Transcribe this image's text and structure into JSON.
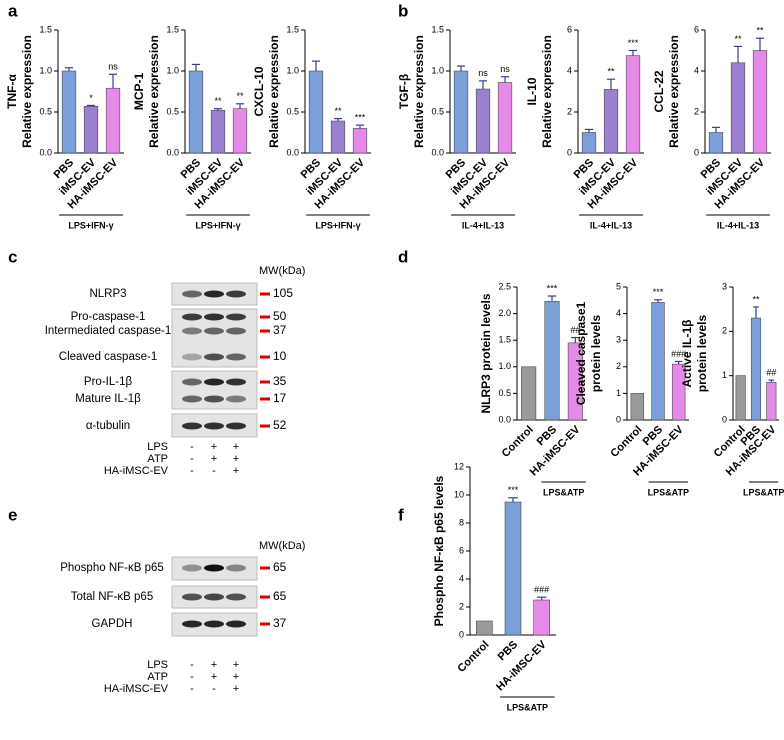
{
  "panel_labels": [
    "a",
    "b",
    "c",
    "d",
    "e",
    "f"
  ],
  "chart_data": [
    {
      "type": "bar",
      "ylabel": [
        "TNF-α",
        "Relative expression"
      ],
      "categories": [
        "PBS",
        "iMSC-EV",
        "HA-iMSC-EV"
      ],
      "colors": [
        "#7b9fd8",
        "#9b80d2",
        "#e68ae9"
      ],
      "values": [
        1.0,
        0.57,
        0.79
      ],
      "errors": [
        0.04,
        0.01,
        0.17
      ],
      "significance": [
        null,
        "*",
        "ns"
      ],
      "ylim": [
        0,
        1.5
      ],
      "yticks": [
        {
          "value": 0,
          "label": "0.0"
        },
        0.5,
        {
          "value": 1,
          "label": "1.0"
        },
        1.5
      ],
      "group": {
        "label": "LPS+IFN-γ",
        "categories": [
          "PBS",
          "iMSC-EV",
          "HA-iMSC-EV"
        ]
      }
    },
    {
      "type": "bar",
      "ylabel": [
        "MCP-1",
        "Relative expression"
      ],
      "categories": [
        "PBS",
        "iMSC-EV",
        "HA-iMSC-EV"
      ],
      "colors": [
        "#7b9fd8",
        "#9b80d2",
        "#e68ae9"
      ],
      "values": [
        1.0,
        0.52,
        0.54
      ],
      "errors": [
        0.08,
        0.02,
        0.06
      ],
      "significance": [
        null,
        "**",
        "**"
      ],
      "ylim": [
        0,
        1.5
      ],
      "yticks": [
        {
          "value": 0,
          "label": "0.0"
        },
        0.5,
        {
          "value": 1,
          "label": "1.0"
        },
        1.5
      ],
      "group": {
        "label": "LPS+IFN-γ",
        "categories": [
          "PBS",
          "iMSC-EV",
          "HA-iMSC-EV"
        ]
      }
    },
    {
      "type": "bar",
      "ylabel": [
        "CXCL-10",
        "Relative expression"
      ],
      "categories": [
        "PBS",
        "iMSC-EV",
        "HA-iMSC-EV"
      ],
      "colors": [
        "#7b9fd8",
        "#9b80d2",
        "#e68ae9"
      ],
      "values": [
        1.0,
        0.39,
        0.3
      ],
      "errors": [
        0.12,
        0.03,
        0.04
      ],
      "significance": [
        null,
        "**",
        "***"
      ],
      "ylim": [
        0,
        1.5
      ],
      "yticks": [
        {
          "value": 0,
          "label": "0.0"
        },
        0.5,
        {
          "value": 1,
          "label": "1.0"
        },
        1.5
      ],
      "group": {
        "label": "LPS+IFN-γ",
        "categories": [
          "PBS",
          "iMSC-EV",
          "HA-iMSC-EV"
        ]
      }
    },
    {
      "type": "bar",
      "ylabel": [
        "TGF-β",
        "Relative expression"
      ],
      "categories": [
        "PBS",
        "iMSC-EV",
        "HA-iMSC-EV"
      ],
      "colors": [
        "#7b9fd8",
        "#9b80d2",
        "#e68ae9"
      ],
      "values": [
        1.0,
        0.78,
        0.86
      ],
      "errors": [
        0.06,
        0.1,
        0.07
      ],
      "significance": [
        null,
        "ns",
        "ns"
      ],
      "ylim": [
        0,
        1.5
      ],
      "yticks": [
        {
          "value": 0,
          "label": "0.0"
        },
        0.5,
        {
          "value": 1,
          "label": "1.0"
        },
        1.5
      ],
      "group": {
        "label": "IL-4+IL-13",
        "categories": [
          "PBS",
          "iMSC-EV",
          "HA-iMSC-EV"
        ]
      }
    },
    {
      "type": "bar",
      "ylabel": [
        "IL-10",
        "Relative expression"
      ],
      "categories": [
        "PBS",
        "iMSC-EV",
        "HA-iMSC-EV"
      ],
      "colors": [
        "#7b9fd8",
        "#9b80d2",
        "#e68ae9"
      ],
      "values": [
        1.0,
        3.1,
        4.75
      ],
      "errors": [
        0.15,
        0.5,
        0.25
      ],
      "significance": [
        null,
        "**",
        "***"
      ],
      "ylim": [
        0,
        6
      ],
      "yticks": [
        0,
        2,
        4,
        6
      ],
      "group": {
        "label": "IL-4+IL-13",
        "categories": [
          "PBS",
          "iMSC-EV",
          "HA-iMSC-EV"
        ]
      }
    },
    {
      "type": "bar",
      "ylabel": [
        "CCL-22",
        "Relative expression"
      ],
      "categories": [
        "PBS",
        "iMSC-EV",
        "HA-iMSC-EV"
      ],
      "colors": [
        "#7b9fd8",
        "#9b80d2",
        "#e68ae9"
      ],
      "values": [
        1.0,
        4.4,
        5.0
      ],
      "errors": [
        0.25,
        0.8,
        0.6
      ],
      "significance": [
        null,
        "**",
        "**"
      ],
      "ylim": [
        0,
        6
      ],
      "yticks": [
        0,
        2,
        4,
        6
      ],
      "group": {
        "label": "IL-4+IL-13",
        "categories": [
          "PBS",
          "iMSC-EV",
          "HA-iMSC-EV"
        ]
      }
    },
    {
      "type": "bar",
      "ylabel": [
        "NLRP3 protein levels"
      ],
      "categories": [
        "Control",
        "PBS",
        "HA-iMSC-EV"
      ],
      "colors": [
        "#9a9a9a",
        "#7b9fd8",
        "#e68ae9"
      ],
      "values": [
        1.0,
        2.23,
        1.45
      ],
      "errors": [
        0,
        0.1,
        0.1
      ],
      "significance": [
        null,
        "***",
        "##"
      ],
      "ylim": [
        0,
        2.5
      ],
      "yticks": [
        {
          "value": 0,
          "label": "0.0"
        },
        0.5,
        {
          "value": 1,
          "label": "1.0"
        },
        1.5,
        {
          "value": 2,
          "label": "2.0"
        },
        2.5
      ],
      "group": {
        "label": "LPS&ATP",
        "categories": [
          "PBS",
          "HA-iMSC-EV"
        ]
      }
    },
    {
      "type": "bar",
      "ylabel": [
        "Cleaved caspase1",
        "protein levels"
      ],
      "categories": [
        "Control",
        "PBS",
        "HA-iMSC-EV"
      ],
      "colors": [
        "#9a9a9a",
        "#7b9fd8",
        "#e68ae9"
      ],
      "values": [
        1.0,
        4.42,
        2.1
      ],
      "errors": [
        0,
        0.1,
        0.1
      ],
      "significance": [
        null,
        "***",
        "###"
      ],
      "ylim": [
        0,
        5
      ],
      "yticks": [
        0,
        1,
        2,
        3,
        4,
        5
      ],
      "group": {
        "label": "LPS&ATP",
        "categories": [
          "PBS",
          "HA-iMSC-EV"
        ]
      }
    },
    {
      "type": "bar",
      "ylabel": [
        "Active IL-1β",
        "protein levels"
      ],
      "categories": [
        "Control",
        "PBS",
        "HA-iMSC-EV"
      ],
      "colors": [
        "#9a9a9a",
        "#7b9fd8",
        "#e68ae9"
      ],
      "values": [
        1.0,
        2.3,
        0.85
      ],
      "errors": [
        0,
        0.25,
        0.05
      ],
      "significance": [
        null,
        "**",
        "##"
      ],
      "ylim": [
        0,
        3
      ],
      "yticks": [
        0,
        1,
        2,
        3
      ],
      "group": {
        "label": "LPS&ATP",
        "categories": [
          "PBS",
          "HA-iMSC-EV"
        ]
      }
    },
    {
      "type": "bar",
      "ylabel": [
        "Phospho NF-κB p65 levels"
      ],
      "categories": [
        "Control",
        "PBS",
        "HA-iMSC-EV"
      ],
      "colors": [
        "#9a9a9a",
        "#7b9fd8",
        "#e68ae9"
      ],
      "values": [
        1.0,
        9.5,
        2.5
      ],
      "errors": [
        0,
        0.3,
        0.2
      ],
      "significance": [
        null,
        "***",
        "###"
      ],
      "ylim": [
        0,
        12
      ],
      "yticks": [
        0,
        2,
        4,
        6,
        8,
        10,
        12
      ],
      "group": {
        "label": "LPS&ATP",
        "categories": [
          "PBS",
          "HA-iMSC-EV"
        ]
      }
    }
  ],
  "blots": [
    {
      "mw_header": "MW(kDa)",
      "rows": [
        {
          "label": "NLRP3",
          "mw": "105"
        },
        {
          "label": "Pro-caspase-1",
          "mw": "50"
        },
        {
          "label": "Intermediated caspase-1",
          "mw": "37"
        },
        {
          "label": "Cleaved caspase-1",
          "mw": "10"
        },
        {
          "label": "Pro-IL-1β",
          "mw": "35"
        },
        {
          "label": "Mature IL-1β",
          "mw": "17"
        },
        {
          "label": "α-tubulin",
          "mw": "52"
        }
      ],
      "treatments": [
        {
          "name": "LPS",
          "signs": [
            "-",
            "+",
            "+"
          ]
        },
        {
          "name": "ATP",
          "signs": [
            "-",
            "+",
            "+"
          ]
        },
        {
          "name": "HA-iMSC-EV",
          "signs": [
            "-",
            "-",
            "+"
          ]
        }
      ]
    },
    {
      "mw_header": "MW(kDa)",
      "rows": [
        {
          "label": "Phospho NF-κB p65",
          "mw": "65"
        },
        {
          "label": "Total NF-κB p65",
          "mw": "65"
        },
        {
          "label": "GAPDH",
          "mw": "37"
        }
      ],
      "treatments": [
        {
          "name": "LPS",
          "signs": [
            "-",
            "+",
            "+"
          ]
        },
        {
          "name": "ATP",
          "signs": [
            "-",
            "+",
            "+"
          ]
        },
        {
          "name": "HA-iMSC-EV",
          "signs": [
            "-",
            "-",
            "+"
          ]
        }
      ]
    }
  ]
}
